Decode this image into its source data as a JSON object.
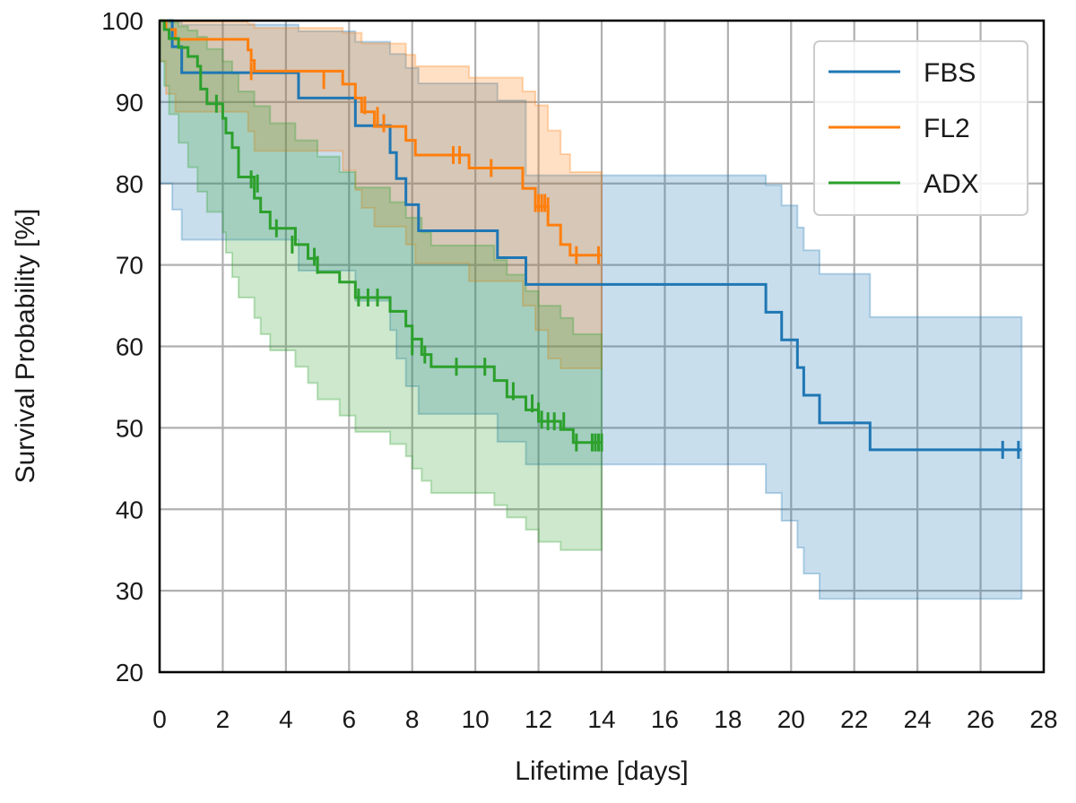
{
  "chart_data": {
    "type": "line",
    "subtype": "kaplan-meier step with confidence bands and censor ticks",
    "xlabel": "Lifetime [days]",
    "ylabel": "Survival Probability [%]",
    "xlim": [
      0,
      28
    ],
    "ylim": [
      20,
      100
    ],
    "xticks": [
      0,
      2,
      4,
      6,
      8,
      10,
      12,
      14,
      16,
      18,
      20,
      22,
      24,
      26,
      28
    ],
    "yticks": [
      20,
      30,
      40,
      50,
      60,
      70,
      80,
      90,
      100
    ],
    "grid": true,
    "legend_position": "top-right",
    "series": [
      {
        "name": "FBS",
        "color": "#1f77b4",
        "steps": [
          [
            0,
            100
          ],
          [
            0.4,
            96.8
          ],
          [
            0.7,
            93.6
          ],
          [
            4.4,
            90.5
          ],
          [
            6.2,
            87.1
          ],
          [
            7.3,
            83.8
          ],
          [
            7.5,
            80.6
          ],
          [
            7.8,
            77.4
          ],
          [
            8.2,
            74.2
          ],
          [
            10.7,
            70.9
          ],
          [
            11.6,
            67.6
          ],
          [
            19.2,
            64.2
          ],
          [
            19.7,
            60.8
          ],
          [
            20.2,
            57.4
          ],
          [
            20.4,
            54.0
          ],
          [
            20.9,
            50.6
          ],
          [
            22.5,
            47.3
          ],
          [
            27.3,
            47.3
          ]
        ],
        "ci_upper": [
          [
            0,
            100
          ],
          [
            0.7,
            99.5
          ],
          [
            4.4,
            98.7
          ],
          [
            6.2,
            97.4
          ],
          [
            7.3,
            95.9
          ],
          [
            7.8,
            94.2
          ],
          [
            8.2,
            92.3
          ],
          [
            10.7,
            90.2
          ],
          [
            11.6,
            81.0
          ],
          [
            19.2,
            79.8
          ],
          [
            19.7,
            77.3
          ],
          [
            20.2,
            74.6
          ],
          [
            20.4,
            71.8
          ],
          [
            20.9,
            68.9
          ],
          [
            22.5,
            63.6
          ],
          [
            27.3,
            63.6
          ]
        ],
        "ci_lower": [
          [
            0,
            100
          ],
          [
            0.4,
            80.0
          ],
          [
            0.7,
            76.8
          ],
          [
            4.4,
            73.1
          ],
          [
            6.2,
            69.3
          ],
          [
            7.3,
            65.6
          ],
          [
            7.5,
            62.0
          ],
          [
            7.8,
            58.5
          ],
          [
            8.2,
            55.1
          ],
          [
            10.7,
            51.7
          ],
          [
            11.6,
            48.3
          ],
          [
            19.2,
            45.5
          ],
          [
            19.7,
            42.0
          ],
          [
            20.2,
            38.6
          ],
          [
            20.4,
            35.3
          ],
          [
            20.9,
            32.1
          ],
          [
            22.5,
            29.0
          ],
          [
            27.3,
            29.0
          ]
        ],
        "censored": [
          [
            26.7,
            47.3
          ],
          [
            27.2,
            47.3
          ]
        ]
      },
      {
        "name": "FL2",
        "color": "#ff7f0e",
        "steps": [
          [
            0,
            100
          ],
          [
            0.2,
            98.9
          ],
          [
            0.5,
            97.7
          ],
          [
            2.8,
            96.4
          ],
          [
            2.9,
            95.1
          ],
          [
            3.0,
            93.8
          ],
          [
            5.8,
            92.2
          ],
          [
            6.2,
            90.5
          ],
          [
            6.4,
            88.8
          ],
          [
            6.8,
            87.0
          ],
          [
            7.8,
            85.3
          ],
          [
            8.1,
            83.5
          ],
          [
            9.8,
            81.9
          ],
          [
            11.5,
            79.4
          ],
          [
            11.9,
            77.2
          ],
          [
            12.3,
            74.9
          ],
          [
            12.7,
            72.5
          ],
          [
            13.0,
            71.2
          ],
          [
            14.0,
            71.2
          ]
        ],
        "ci_upper": [
          [
            0,
            100
          ],
          [
            0.5,
            99.9
          ],
          [
            2.8,
            99.6
          ],
          [
            3.0,
            99.1
          ],
          [
            5.8,
            98.5
          ],
          [
            6.4,
            97.2
          ],
          [
            7.8,
            95.8
          ],
          [
            8.1,
            94.4
          ],
          [
            9.8,
            93.0
          ],
          [
            11.5,
            91.3
          ],
          [
            11.9,
            89.6
          ],
          [
            12.3,
            86.5
          ],
          [
            12.7,
            83.6
          ],
          [
            13.0,
            81.4
          ],
          [
            14.0,
            81.4
          ]
        ],
        "ci_lower": [
          [
            0,
            100
          ],
          [
            0.2,
            95.0
          ],
          [
            0.5,
            91.0
          ],
          [
            2.8,
            88.8
          ],
          [
            3.0,
            86.4
          ],
          [
            5.8,
            84.0
          ],
          [
            6.2,
            81.6
          ],
          [
            6.4,
            79.2
          ],
          [
            6.8,
            77.0
          ],
          [
            7.8,
            74.7
          ],
          [
            8.1,
            72.5
          ],
          [
            9.8,
            70.2
          ],
          [
            11.5,
            68.0
          ],
          [
            11.9,
            65.0
          ],
          [
            12.3,
            62.0
          ],
          [
            12.7,
            58.5
          ],
          [
            13.0,
            57.3
          ],
          [
            14.0,
            57.3
          ]
        ],
        "censored": [
          [
            2.9,
            93.8
          ],
          [
            5.2,
            92.7
          ],
          [
            6.5,
            89.6
          ],
          [
            6.9,
            88.3
          ],
          [
            7.1,
            87.4
          ],
          [
            9.3,
            83.5
          ],
          [
            9.5,
            83.5
          ],
          [
            10.5,
            81.9
          ],
          [
            11.9,
            77.6
          ],
          [
            12.0,
            77.6
          ],
          [
            12.1,
            77.6
          ],
          [
            12.2,
            77.6
          ],
          [
            12.3,
            77.2
          ],
          [
            13.2,
            71.2
          ],
          [
            13.9,
            71.2
          ]
        ]
      },
      {
        "name": "ADX",
        "color": "#2ca02c",
        "steps": [
          [
            0,
            100
          ],
          [
            0.15,
            98.9
          ],
          [
            0.3,
            97.8
          ],
          [
            0.6,
            96.7
          ],
          [
            0.9,
            95.6
          ],
          [
            1.2,
            94.4
          ],
          [
            1.3,
            91.6
          ],
          [
            1.5,
            89.8
          ],
          [
            2.0,
            88.0
          ],
          [
            2.1,
            86.2
          ],
          [
            2.3,
            84.4
          ],
          [
            2.5,
            80.8
          ],
          [
            3.0,
            78.2
          ],
          [
            3.2,
            76.5
          ],
          [
            3.5,
            74.5
          ],
          [
            4.3,
            72.5
          ],
          [
            4.7,
            70.8
          ],
          [
            5.0,
            69.1
          ],
          [
            5.7,
            67.9
          ],
          [
            6.2,
            66.0
          ],
          [
            7.3,
            64.3
          ],
          [
            7.8,
            62.5
          ],
          [
            8.0,
            60.9
          ],
          [
            8.3,
            59.0
          ],
          [
            8.6,
            57.5
          ],
          [
            10.6,
            55.8
          ],
          [
            11.0,
            53.8
          ],
          [
            11.6,
            52.2
          ],
          [
            12.0,
            50.8
          ],
          [
            12.7,
            49.8
          ],
          [
            13.1,
            48.2
          ],
          [
            14.0,
            48.2
          ]
        ],
        "ci_upper": [
          [
            0,
            100
          ],
          [
            0.3,
            99.8
          ],
          [
            0.6,
            99.3
          ],
          [
            0.9,
            98.8
          ],
          [
            1.2,
            98.0
          ],
          [
            1.5,
            96.5
          ],
          [
            2.0,
            95.0
          ],
          [
            2.3,
            93.5
          ],
          [
            2.5,
            91.3
          ],
          [
            3.0,
            89.5
          ],
          [
            3.5,
            87.4
          ],
          [
            4.3,
            85.3
          ],
          [
            5.0,
            83.3
          ],
          [
            5.7,
            81.4
          ],
          [
            6.2,
            79.5
          ],
          [
            7.3,
            77.7
          ],
          [
            7.8,
            75.8
          ],
          [
            8.3,
            74.0
          ],
          [
            8.6,
            72.4
          ],
          [
            10.6,
            70.6
          ],
          [
            11.0,
            68.8
          ],
          [
            11.6,
            66.8
          ],
          [
            12.0,
            65.0
          ],
          [
            12.7,
            63.5
          ],
          [
            13.1,
            61.5
          ],
          [
            14.0,
            61.5
          ]
        ],
        "ci_lower": [
          [
            0,
            100
          ],
          [
            0.15,
            95.0
          ],
          [
            0.3,
            92.0
          ],
          [
            0.6,
            88.5
          ],
          [
            0.9,
            85.0
          ],
          [
            1.2,
            82.0
          ],
          [
            1.5,
            79.0
          ],
          [
            2.0,
            76.5
          ],
          [
            2.1,
            74.0
          ],
          [
            2.3,
            71.5
          ],
          [
            2.5,
            68.5
          ],
          [
            3.0,
            66.0
          ],
          [
            3.2,
            63.5
          ],
          [
            3.5,
            61.5
          ],
          [
            4.3,
            59.5
          ],
          [
            4.7,
            57.5
          ],
          [
            5.0,
            55.5
          ],
          [
            5.7,
            53.5
          ],
          [
            6.2,
            51.5
          ],
          [
            7.3,
            49.5
          ],
          [
            7.8,
            48.0
          ],
          [
            8.0,
            46.5
          ],
          [
            8.3,
            45.0
          ],
          [
            8.6,
            43.5
          ],
          [
            10.6,
            42.0
          ],
          [
            11.0,
            40.5
          ],
          [
            11.6,
            39.0
          ],
          [
            12.0,
            37.5
          ],
          [
            12.7,
            36.0
          ],
          [
            13.1,
            35.0
          ],
          [
            14.0,
            35.0
          ]
        ],
        "censored": [
          [
            1.8,
            89.8
          ],
          [
            2.9,
            80.5
          ],
          [
            3.1,
            80.0
          ],
          [
            3.7,
            74.5
          ],
          [
            4.2,
            72.5
          ],
          [
            4.9,
            71.0
          ],
          [
            5.0,
            70.0
          ],
          [
            6.3,
            66.0
          ],
          [
            6.6,
            66.0
          ],
          [
            6.9,
            66.0
          ],
          [
            8.0,
            60.0
          ],
          [
            8.4,
            59.0
          ],
          [
            9.4,
            57.5
          ],
          [
            10.3,
            57.5
          ],
          [
            11.2,
            54.5
          ],
          [
            11.8,
            53.0
          ],
          [
            12.0,
            52.0
          ],
          [
            12.1,
            51.0
          ],
          [
            12.3,
            50.8
          ],
          [
            12.5,
            50.8
          ],
          [
            12.8,
            50.8
          ],
          [
            13.2,
            48.2
          ],
          [
            13.7,
            48.2
          ],
          [
            13.8,
            48.2
          ],
          [
            13.9,
            48.2
          ],
          [
            14.0,
            48.2
          ]
        ]
      }
    ]
  }
}
